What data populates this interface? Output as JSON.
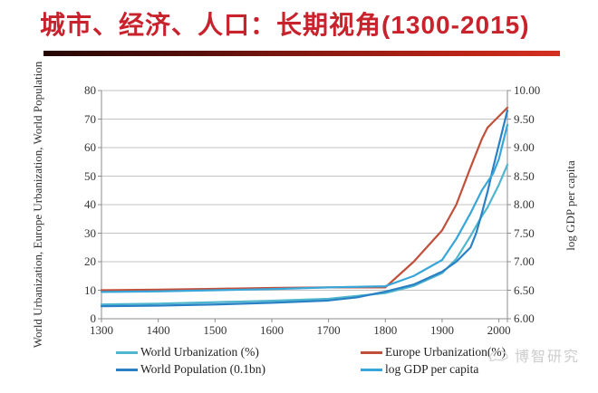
{
  "title": {
    "text": "城市、经济、人口：长期视角(1300-2015)"
  },
  "axes": {
    "left_title": "World Urbanization, Europe Urbanization, World Population",
    "right_title": "log GDP per capita",
    "left_ticks": [
      "0",
      "10",
      "20",
      "30",
      "40",
      "50",
      "60",
      "70",
      "80"
    ],
    "right_ticks": [
      "6.00",
      "6.50",
      "7.00",
      "7.50",
      "8.00",
      "8.50",
      "9.00",
      "9.50",
      "10.00"
    ],
    "x_ticks": [
      "1300",
      "1400",
      "1500",
      "1600",
      "1700",
      "1800",
      "1900",
      "2000"
    ]
  },
  "chart_data": {
    "type": "line",
    "title": "城市、经济、人口：长期视角(1300-2015)",
    "x_range": [
      1300,
      2015
    ],
    "x": [
      1300,
      1400,
      1500,
      1600,
      1700,
      1750,
      1800,
      1850,
      1900,
      1925,
      1950,
      1960,
      1970,
      1980,
      1990,
      2000,
      2015
    ],
    "left_axis": {
      "label": "World Urbanization, Europe Urbanization, World Population",
      "range": [
        0,
        80
      ]
    },
    "right_axis": {
      "label": "log GDP per capita",
      "range": [
        6,
        10
      ]
    },
    "grid": true,
    "legend_position": "bottom",
    "series": [
      {
        "name": "World Urbanization (%)",
        "axis": "left",
        "color": "#4FB6CE",
        "values": [
          5,
          5.3,
          5.8,
          6.3,
          7,
          8,
          9,
          11.5,
          16,
          21,
          29,
          32.5,
          36,
          39,
          43,
          47,
          54
        ]
      },
      {
        "name": "World Population (0.1bn)",
        "axis": "left",
        "color": "#2980C4",
        "values": [
          4.4,
          4.6,
          5,
          5.6,
          6.4,
          7.5,
          9.5,
          12,
          16.5,
          20,
          25,
          30,
          37,
          44.5,
          53,
          61,
          73
        ]
      },
      {
        "name": "Europe Urbanization(%)",
        "axis": "left",
        "color": "#C0503C",
        "values": [
          10,
          10.2,
          10.5,
          10.8,
          11,
          11,
          11,
          20,
          31,
          40,
          53,
          58,
          63,
          67,
          69,
          71,
          74
        ]
      },
      {
        "name": "log GDP per capita",
        "axis": "right",
        "color": "#38A6D8",
        "values": [
          6.47,
          6.48,
          6.5,
          6.52,
          6.55,
          6.56,
          6.57,
          6.75,
          7.03,
          7.4,
          7.85,
          8.05,
          8.25,
          8.4,
          8.55,
          8.8,
          9.4
        ]
      }
    ]
  },
  "legend": {
    "items": [
      {
        "label": "World Urbanization (%)",
        "color": "#4FB6CE"
      },
      {
        "label": "World Population (0.1bn)",
        "color": "#2980C4"
      },
      {
        "label": "Europe Urbanization(%)",
        "color": "#C0503C"
      },
      {
        "label": "log GDP per capita",
        "color": "#38A6D8"
      }
    ]
  },
  "watermark": {
    "text": "博智研究"
  },
  "colors": {
    "title": "#C8232C",
    "grid": "#C3C3C3",
    "axis": "#8C8C8C",
    "tick_text": "#333333"
  }
}
